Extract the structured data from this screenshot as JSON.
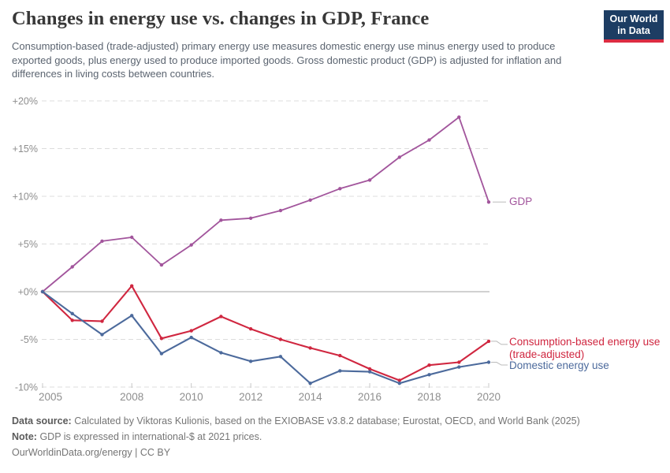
{
  "header": {
    "title": "Changes in energy use vs. changes in GDP, France",
    "subtitle": "Consumption-based (trade-adjusted) primary energy use measures domestic energy use minus energy used to produce exported goods, plus energy used to produce imported goods. Gross domestic product (GDP) is adjusted for inflation and differences in living costs between countries.",
    "logo": {
      "line1": "Our World",
      "line2": "in Data"
    }
  },
  "chart_data": {
    "type": "line",
    "title": "Changes in energy use vs. changes in GDP, France",
    "x": [
      2005,
      2006,
      2007,
      2008,
      2009,
      2010,
      2011,
      2012,
      2013,
      2014,
      2015,
      2016,
      2017,
      2018,
      2019,
      2020
    ],
    "x_ticks": [
      2005,
      2008,
      2010,
      2012,
      2014,
      2016,
      2018,
      2020
    ],
    "y_ticks": [
      20,
      15,
      10,
      5,
      0,
      -5,
      -10
    ],
    "y_tick_labels": [
      "+20%",
      "+15%",
      "+10%",
      "+5%",
      "+0%",
      "-5%",
      "-10%"
    ],
    "ylim": [
      -10,
      20
    ],
    "unit": "%",
    "grid": "horizontal-dashed",
    "legend_position": "right-of-line-ends",
    "series": [
      {
        "name": "GDP",
        "slug": "gdp",
        "color": "#a2559c",
        "values": [
          0,
          2.6,
          5.3,
          5.7,
          2.8,
          4.9,
          7.5,
          7.7,
          8.5,
          9.6,
          10.8,
          11.7,
          14.1,
          15.9,
          18.3,
          9.4
        ]
      },
      {
        "name": "Consumption-based energy use (trade-adjusted)",
        "slug": "consumption",
        "color": "#d02740",
        "values": [
          0,
          -3.0,
          -3.1,
          0.6,
          -4.9,
          -4.1,
          -2.6,
          -3.9,
          -5.0,
          -5.9,
          -6.7,
          -8.1,
          -9.3,
          -7.7,
          -7.4,
          -5.2
        ]
      },
      {
        "name": "Domestic energy use",
        "slug": "domestic",
        "color": "#4c6a9c",
        "values": [
          0,
          -2.3,
          -4.5,
          -2.5,
          -6.5,
          -4.8,
          -6.4,
          -7.3,
          -6.8,
          -9.6,
          -8.3,
          -8.4,
          -9.6,
          -8.7,
          -7.9,
          -7.4
        ]
      }
    ],
    "legend": {
      "entries": [
        {
          "label_lines": [
            "GDP"
          ]
        },
        {
          "label_lines": [
            "Consumption-based energy use",
            "(trade-adjusted)"
          ]
        },
        {
          "label_lines": [
            "Domestic energy use"
          ]
        }
      ]
    }
  },
  "footer": {
    "datasource_label": "Data source:",
    "datasource_text": "Calculated by Viktoras Kulionis, based on the EXIOBASE v3.8.2 database; Eurostat, OECD, and World Bank (2025)",
    "note_label": "Note:",
    "note_text": "GDP is expressed in international-$ at 2021 prices.",
    "link": "OurWorldinData.org/energy",
    "license": "| CC BY"
  },
  "colors": {
    "logo_background": "#1d3d63",
    "logo_stripe": "#dc2c42",
    "gdp": "#a2559c",
    "consumption": "#d02740",
    "domestic": "#4c6a9c"
  }
}
